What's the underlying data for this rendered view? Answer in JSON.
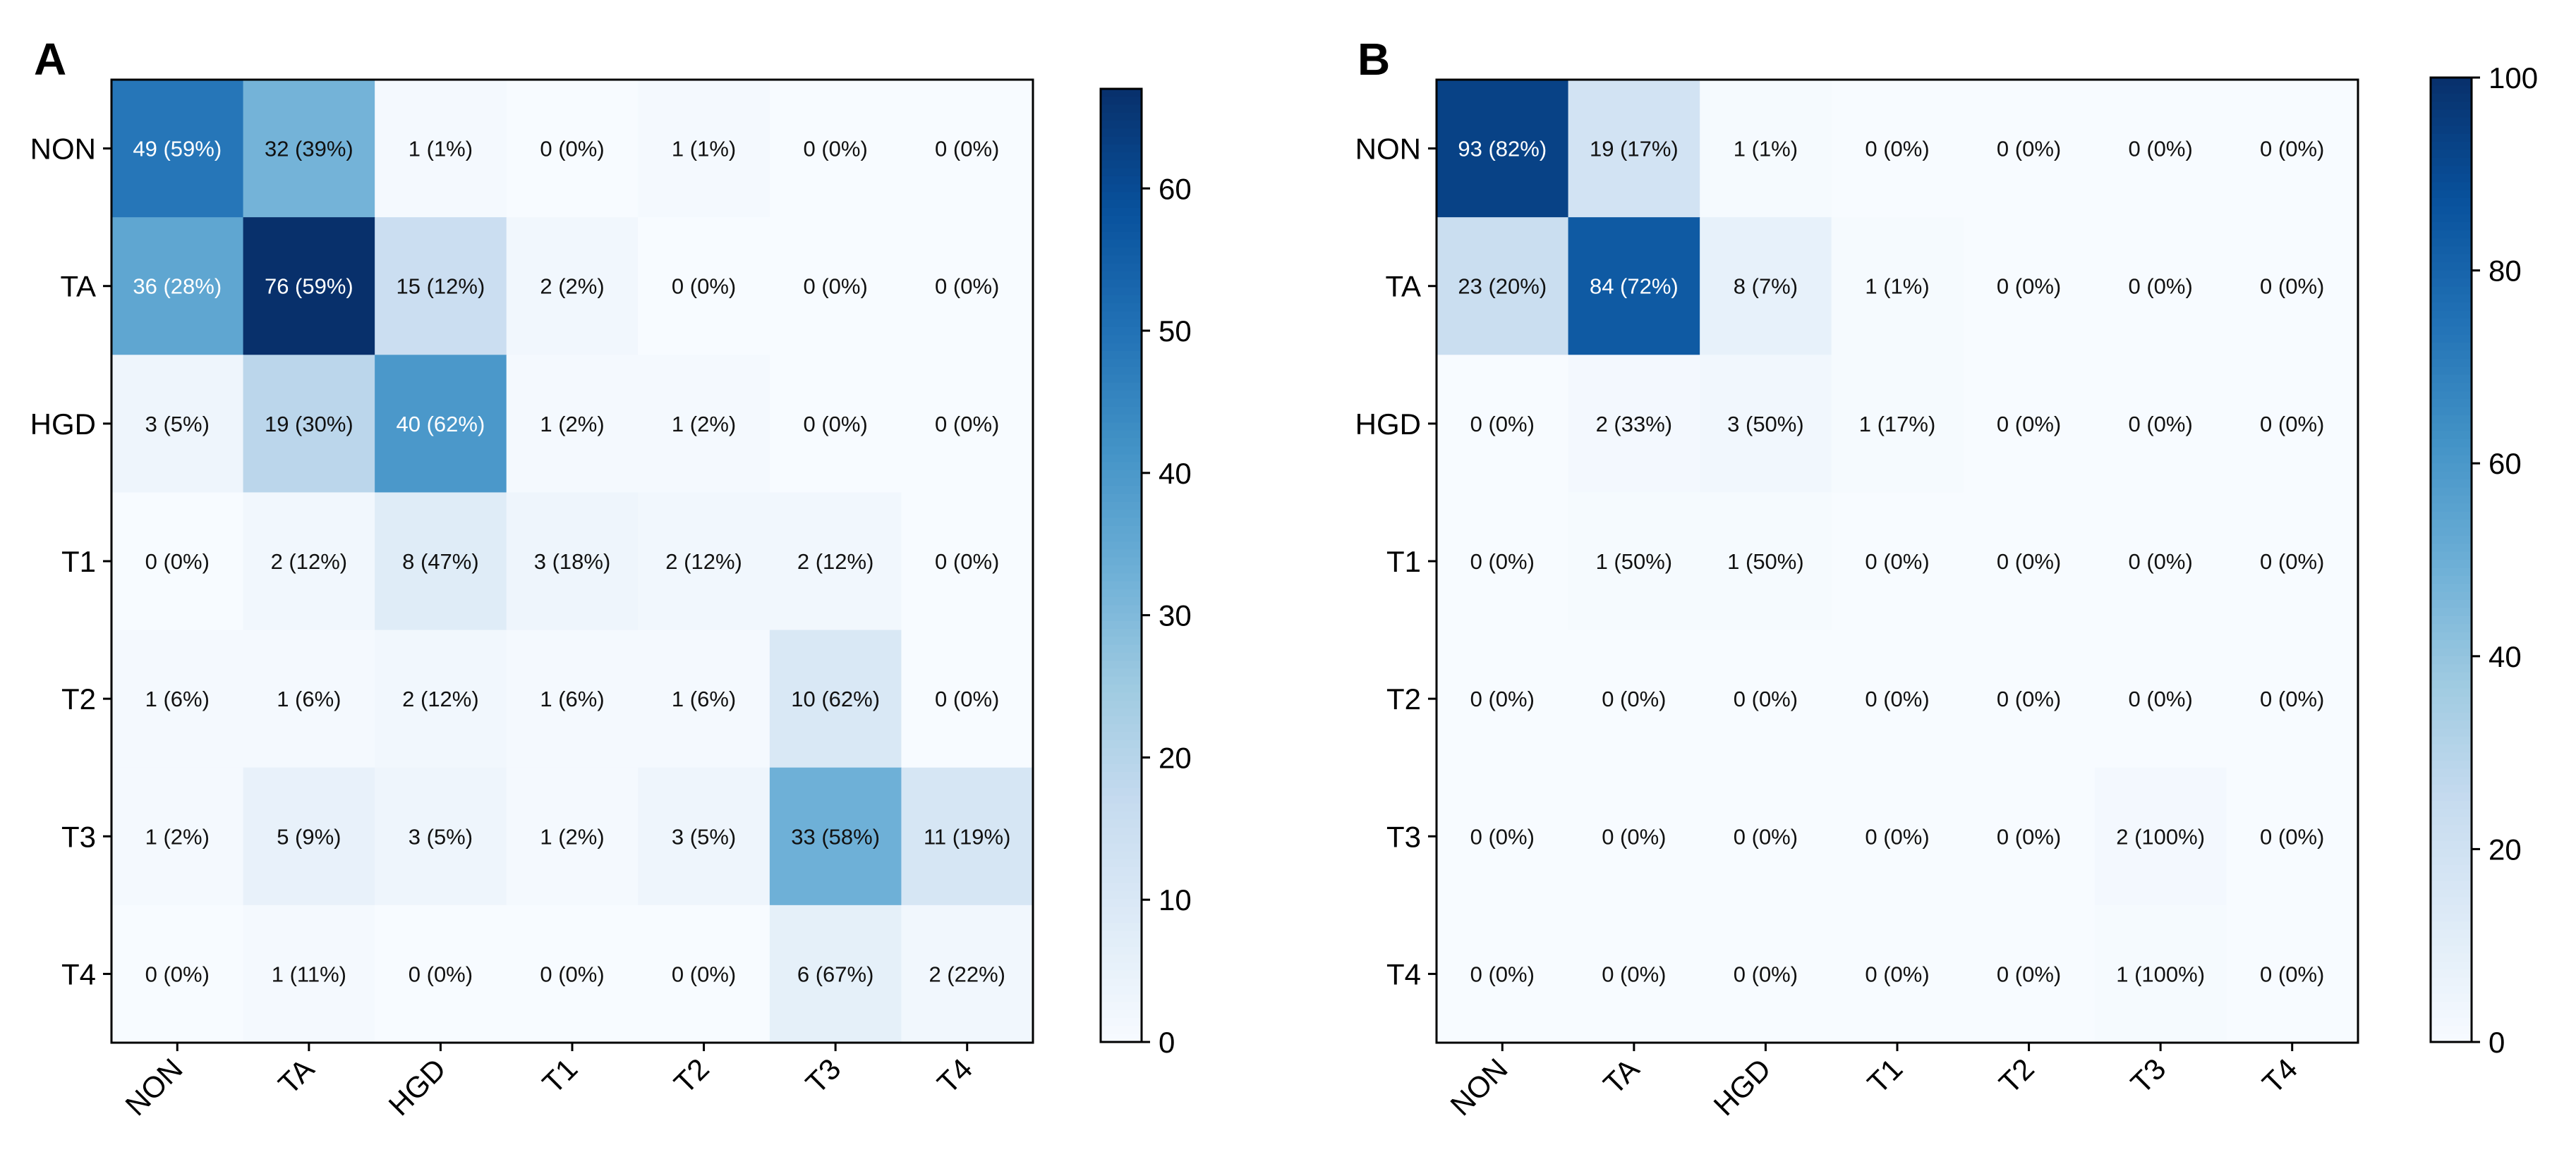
{
  "chart_data": [
    {
      "panel": "A",
      "type": "heatmap",
      "row_labels": [
        "NON",
        "TA",
        "HGD",
        "T1",
        "T2",
        "T3",
        "T4"
      ],
      "col_labels": [
        "NON",
        "TA",
        "HGD",
        "T1",
        "T2",
        "T3",
        "T4"
      ],
      "values": [
        [
          49,
          32,
          1,
          0,
          1,
          0,
          0
        ],
        [
          36,
          76,
          15,
          2,
          0,
          0,
          0
        ],
        [
          3,
          19,
          40,
          1,
          1,
          0,
          0
        ],
        [
          0,
          2,
          8,
          3,
          2,
          2,
          0
        ],
        [
          1,
          1,
          2,
          1,
          1,
          10,
          0
        ],
        [
          1,
          5,
          3,
          1,
          3,
          33,
          11
        ],
        [
          0,
          1,
          0,
          0,
          0,
          6,
          2
        ]
      ],
      "percents": [
        [
          59,
          39,
          1,
          0,
          1,
          0,
          0
        ],
        [
          28,
          59,
          12,
          2,
          0,
          0,
          0
        ],
        [
          5,
          30,
          62,
          2,
          2,
          0,
          0
        ],
        [
          0,
          12,
          47,
          18,
          12,
          12,
          0
        ],
        [
          6,
          6,
          12,
          6,
          6,
          62,
          0
        ],
        [
          2,
          9,
          5,
          2,
          5,
          58,
          19
        ],
        [
          0,
          11,
          0,
          0,
          0,
          67,
          22
        ]
      ],
      "cell_labels": [
        [
          "49 (59%)",
          "32 (39%)",
          "1 (1%)",
          "0 (0%)",
          "1 (1%)",
          "0 (0%)",
          "0 (0%)"
        ],
        [
          "36 (28%)",
          "76 (59%)",
          "15 (12%)",
          "2 (2%)",
          "0 (0%)",
          "0 (0%)",
          "0 (0%)"
        ],
        [
          "3 (5%)",
          "19 (30%)",
          "40 (62%)",
          "1 (2%)",
          "1 (2%)",
          "0 (0%)",
          "0 (0%)"
        ],
        [
          "0 (0%)",
          "2 (12%)",
          "8 (47%)",
          "3 (18%)",
          "2 (12%)",
          "2 (12%)",
          "0 (0%)"
        ],
        [
          "1 (6%)",
          "1 (6%)",
          "2 (12%)",
          "1 (6%)",
          "1 (6%)",
          "10 (62%)",
          "0 (0%)"
        ],
        [
          "1 (2%)",
          "5 (9%)",
          "3 (5%)",
          "1 (2%)",
          "3 (5%)",
          "33 (58%)",
          "11 (19%)"
        ],
        [
          "0 (0%)",
          "1 (11%)",
          "0 (0%)",
          "0 (0%)",
          "0 (0%)",
          "6 (67%)",
          "2 (22%)"
        ]
      ],
      "colorbar": {
        "range": [
          0,
          67
        ],
        "ticks": [
          0,
          10,
          20,
          30,
          40,
          50,
          60
        ]
      },
      "colormap": "Blues"
    },
    {
      "panel": "B",
      "type": "heatmap",
      "row_labels": [
        "NON",
        "TA",
        "HGD",
        "T1",
        "T2",
        "T3",
        "T4"
      ],
      "col_labels": [
        "NON",
        "TA",
        "HGD",
        "T1",
        "T2",
        "T3",
        "T4"
      ],
      "values": [
        [
          93,
          19,
          1,
          0,
          0,
          0,
          0
        ],
        [
          23,
          84,
          8,
          1,
          0,
          0,
          0
        ],
        [
          0,
          2,
          3,
          1,
          0,
          0,
          0
        ],
        [
          0,
          1,
          1,
          0,
          0,
          0,
          0
        ],
        [
          0,
          0,
          0,
          0,
          0,
          0,
          0
        ],
        [
          0,
          0,
          0,
          0,
          0,
          2,
          0
        ],
        [
          0,
          0,
          0,
          0,
          0,
          1,
          0
        ]
      ],
      "percents": [
        [
          82,
          17,
          1,
          0,
          0,
          0,
          0
        ],
        [
          20,
          72,
          7,
          1,
          0,
          0,
          0
        ],
        [
          0,
          33,
          50,
          17,
          0,
          0,
          0
        ],
        [
          0,
          50,
          50,
          0,
          0,
          0,
          0
        ],
        [
          0,
          0,
          0,
          0,
          0,
          0,
          0
        ],
        [
          0,
          0,
          0,
          0,
          0,
          100,
          0
        ],
        [
          0,
          0,
          0,
          0,
          0,
          100,
          0
        ]
      ],
      "cell_labels": [
        [
          "93 (82%)",
          "19 (17%)",
          "1 (1%)",
          "0 (0%)",
          "0 (0%)",
          "0 (0%)",
          "0 (0%)"
        ],
        [
          "23 (20%)",
          "84 (72%)",
          "8 (7%)",
          "1 (1%)",
          "0 (0%)",
          "0 (0%)",
          "0 (0%)"
        ],
        [
          "0 (0%)",
          "2 (33%)",
          "3 (50%)",
          "1 (17%)",
          "0 (0%)",
          "0 (0%)",
          "0 (0%)"
        ],
        [
          "0 (0%)",
          "1 (50%)",
          "1 (50%)",
          "0 (0%)",
          "0 (0%)",
          "0 (0%)",
          "0 (0%)"
        ],
        [
          "0 (0%)",
          "0 (0%)",
          "0 (0%)",
          "0 (0%)",
          "0 (0%)",
          "0 (0%)",
          "0 (0%)"
        ],
        [
          "0 (0%)",
          "0 (0%)",
          "0 (0%)",
          "0 (0%)",
          "0 (0%)",
          "2 (100%)",
          "0 (0%)"
        ],
        [
          "0 (0%)",
          "0 (0%)",
          "0 (0%)",
          "0 (0%)",
          "0 (0%)",
          "1 (100%)",
          "0 (0%)"
        ]
      ],
      "colorbar": {
        "range": [
          0,
          100
        ],
        "ticks": [
          0,
          20,
          40,
          60,
          80,
          100
        ]
      },
      "colormap": "Blues"
    }
  ]
}
